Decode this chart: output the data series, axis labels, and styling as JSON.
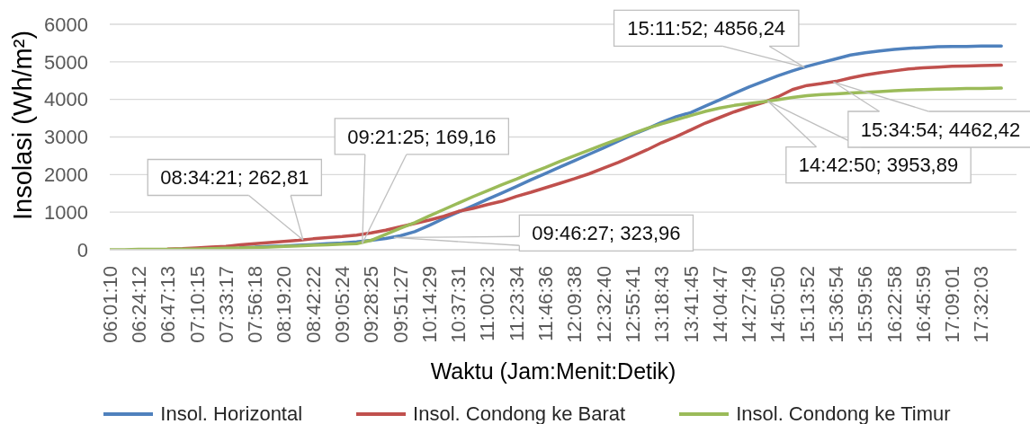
{
  "chart_data": {
    "type": "line",
    "xlabel": "Waktu (Jam:Menit:Detik)",
    "ylabel": "Insolasi (Wh/m²)",
    "x": [
      6.01944,
      6.2114,
      6.4033,
      6.5951,
      6.7869,
      6.9789,
      7.1708,
      7.3628,
      7.5547,
      7.7465,
      7.9383,
      8.1303,
      8.3222,
      8.5142,
      8.7061,
      8.8981,
      9.09,
      9.2818,
      9.4736,
      9.6656,
      9.8575,
      10.0494,
      10.2414,
      10.4333,
      10.6253,
      10.8171,
      11.0089,
      11.2008,
      11.3928,
      11.5847,
      11.7767,
      11.9686,
      12.1606,
      12.3525,
      12.5444,
      12.7363,
      12.9281,
      13.12,
      13.3119,
      13.5039,
      13.6958,
      13.8878,
      14.0797,
      14.2717,
      14.4636,
      14.6554,
      14.8472,
      15.0392,
      15.2311,
      15.4231,
      15.615,
      15.8069,
      15.9989,
      16.1908,
      16.3828,
      16.5746,
      16.7664,
      16.9583,
      17.1503,
      17.3422,
      17.5342,
      17.8
    ],
    "series": [
      {
        "name": "Insol. Horizontal",
        "color": "#4f81bd",
        "values": [
          null,
          null,
          null,
          null,
          null,
          null,
          null,
          null,
          null,
          60,
          70,
          90,
          100,
          120,
          140,
          160,
          180,
          210,
          250,
          300,
          370,
          480,
          650,
          830,
          1000,
          1170,
          1340,
          1510,
          1680,
          1860,
          2030,
          2200,
          2370,
          2540,
          2710,
          2890,
          3060,
          3220,
          3390,
          3540,
          3650,
          3820,
          3990,
          4160,
          4330,
          4480,
          4630,
          4760,
          4880,
          4980,
          5080,
          5180,
          5240,
          5290,
          5330,
          5360,
          5380,
          5400,
          5410,
          5410,
          5420,
          5420
        ]
      },
      {
        "name": "Insol. Condong ke Barat",
        "color": "#c0504d",
        "values": [
          null,
          null,
          null,
          null,
          20,
          30,
          50,
          70,
          90,
          130,
          160,
          190,
          220,
          250,
          290,
          320,
          350,
          390,
          450,
          520,
          610,
          700,
          790,
          890,
          1020,
          1100,
          1200,
          1290,
          1420,
          1530,
          1650,
          1770,
          1890,
          2020,
          2170,
          2320,
          2490,
          2660,
          2850,
          3010,
          3190,
          3370,
          3520,
          3670,
          3800,
          3920,
          4070,
          4260,
          4370,
          4420,
          4480,
          4570,
          4650,
          4710,
          4760,
          4810,
          4840,
          4860,
          4880,
          4890,
          4900,
          4910
        ]
      },
      {
        "name": "Insol. Condong ke Timur",
        "color": "#9bbb59",
        "values": [
          0,
          0,
          10,
          10,
          10,
          20,
          20,
          30,
          40,
          50,
          60,
          70,
          90,
          100,
          120,
          130,
          150,
          160,
          250,
          410,
          570,
          720,
          900,
          1070,
          1240,
          1410,
          1570,
          1730,
          1880,
          2040,
          2190,
          2350,
          2500,
          2650,
          2800,
          2940,
          3090,
          3230,
          3350,
          3460,
          3570,
          3680,
          3770,
          3840,
          3890,
          3940,
          3990,
          4050,
          4100,
          4130,
          4150,
          4170,
          4190,
          4210,
          4230,
          4250,
          4260,
          4270,
          4280,
          4290,
          4290,
          4300
        ]
      }
    ],
    "xlim": [
      6.01944,
      18
    ],
    "xticks": [
      {
        "value": 6.01944,
        "label": "06:01:10"
      },
      {
        "value": 6.40333,
        "label": "06:24:12"
      },
      {
        "value": 6.78694,
        "label": "06:47:13"
      },
      {
        "value": 7.17083,
        "label": "07:10:15"
      },
      {
        "value": 7.55472,
        "label": "07:33:17"
      },
      {
        "value": 7.93833,
        "label": "07:56:18"
      },
      {
        "value": 8.32222,
        "label": "08:19:20"
      },
      {
        "value": 8.70611,
        "label": "08:42:22"
      },
      {
        "value": 9.09,
        "label": "09:05:24"
      },
      {
        "value": 9.47361,
        "label": "09:28:25"
      },
      {
        "value": 9.8575,
        "label": "09:51:27"
      },
      {
        "value": 10.24139,
        "label": "10:14:29"
      },
      {
        "value": 10.62528,
        "label": "10:37:31"
      },
      {
        "value": 11.00889,
        "label": "11:00:32"
      },
      {
        "value": 11.39278,
        "label": "11:23:34"
      },
      {
        "value": 11.77667,
        "label": "11:46:36"
      },
      {
        "value": 12.16056,
        "label": "12:09:38"
      },
      {
        "value": 12.54444,
        "label": "12:32:40"
      },
      {
        "value": 12.92806,
        "label": "12:55:41"
      },
      {
        "value": 13.31194,
        "label": "13:18:43"
      },
      {
        "value": 13.69583,
        "label": "13:41:45"
      },
      {
        "value": 14.07972,
        "label": "14:04:47"
      },
      {
        "value": 14.46361,
        "label": "14:27:49"
      },
      {
        "value": 14.84722,
        "label": "14:50:50"
      },
      {
        "value": 15.23111,
        "label": "15:13:52"
      },
      {
        "value": 15.615,
        "label": "15:36:54"
      },
      {
        "value": 15.99889,
        "label": "15:59:56"
      },
      {
        "value": 16.38278,
        "label": "16:22:58"
      },
      {
        "value": 16.76639,
        "label": "16:45:59"
      },
      {
        "value": 17.15028,
        "label": "17:09:01"
      },
      {
        "value": 17.53417,
        "label": "17:32:03"
      }
    ],
    "ylim": [
      0,
      6000
    ],
    "yticks": [
      0,
      1000,
      2000,
      3000,
      4000,
      5000,
      6000
    ],
    "annotations": [
      {
        "text": "08:34:21; 262,81",
        "x": 8.5725,
        "y": 262.81
      },
      {
        "text": "09:21:25; 169,16",
        "x": 9.35694,
        "y": 169.16
      },
      {
        "text": "09:46:27; 323,96",
        "x": 9.77417,
        "y": 323.96
      },
      {
        "text": "14:42:50; 3953,89",
        "x": 14.71389,
        "y": 3953.89
      },
      {
        "text": "15:11:52; 4856,24",
        "x": 15.19778,
        "y": 4856.24
      },
      {
        "text": "15:34:54; 4462,42",
        "x": 15.58167,
        "y": 4462.42
      }
    ],
    "grid": "y",
    "legend": "bottom",
    "marker": "none",
    "line_style": "solid"
  }
}
